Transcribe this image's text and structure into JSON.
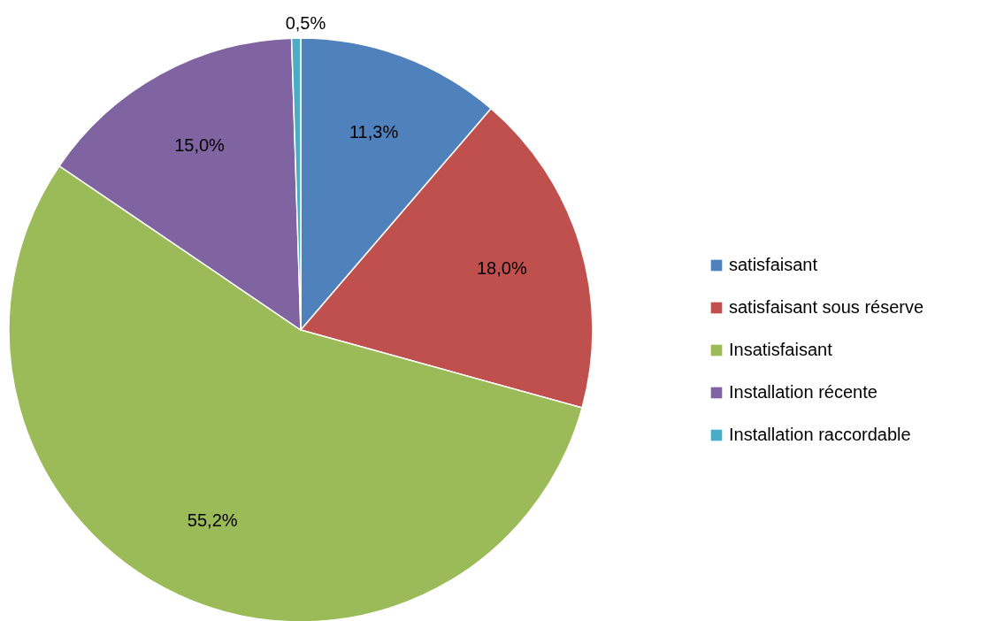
{
  "chart_data": {
    "type": "pie",
    "categories": [
      "satisfaisant",
      "satisfaisant sous réserve",
      "Insatisfaisant",
      "Installation récente",
      "Installation raccordable"
    ],
    "values": [
      11.3,
      18.0,
      55.2,
      15.0,
      0.5
    ],
    "value_labels": [
      "11,3%",
      "18,0%",
      "55,2%",
      "15,0%",
      "0,5%"
    ],
    "colors": [
      "#4f81bd",
      "#c0504d",
      "#9bbb59",
      "#8064a2",
      "#4bacc6"
    ],
    "legend": "right"
  }
}
